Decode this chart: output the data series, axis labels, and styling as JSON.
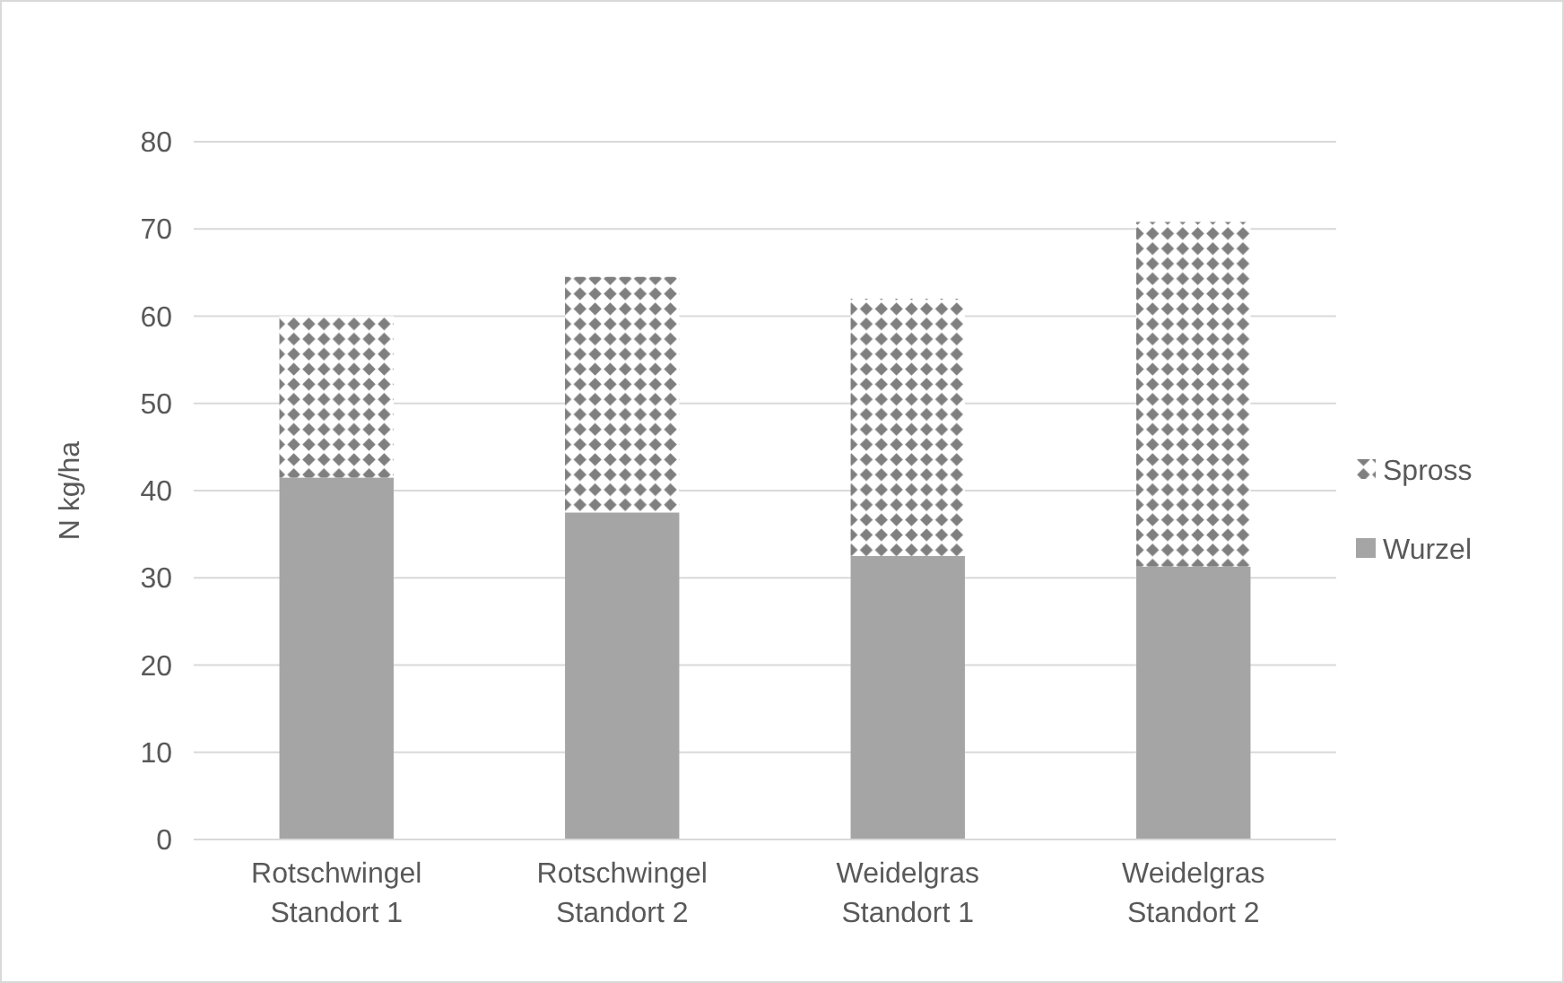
{
  "chart_data": {
    "type": "bar",
    "stacked": true,
    "ylabel": "N kg/ha",
    "categories": [
      "Rotschwingel Standort 1",
      "Rotschwingel Standort 2",
      "Weidelgras Standort 1",
      "Weidelgras Standort 2"
    ],
    "series": [
      {
        "name": "Wurzel",
        "color": "#a5a5a5",
        "values": [
          41.5,
          37.5,
          32.5,
          31.3
        ]
      },
      {
        "name": "Spross",
        "color": "#7f7f7f",
        "values": [
          18.5,
          27,
          29.5,
          39.5
        ]
      }
    ],
    "ylim": [
      0,
      80
    ],
    "yticks": [
      0,
      10,
      20,
      30,
      40,
      50,
      60,
      70,
      80
    ],
    "grid": "y",
    "legend": "right"
  }
}
